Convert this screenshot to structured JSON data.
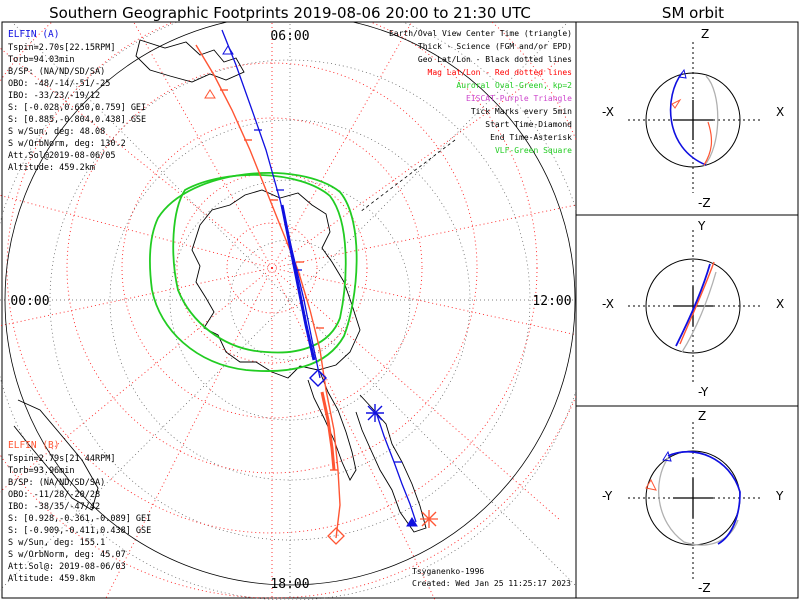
{
  "main_title": "Southern Geographic Footprints 2019-08-06 20:00 to 21:30 UTC",
  "sm_title": "SM orbit",
  "time_labels": {
    "top": "06:00",
    "left": "00:00",
    "right": "12:00",
    "bottom": "18:00"
  },
  "elfin_a": {
    "title": "ELFIN (A)",
    "lines": [
      "Tspin=2.70s[22.15RPM]",
      "Torb=94.03min",
      "B/SP: (NA/ND/SD/SA)",
      "OBO: -48/-14/-51/-25",
      "IBO: -33/23/-19/12",
      "S: [-0.028,0.650,0.759] GEI",
      "S: [0.885,-0.804,0.438] GSE",
      "S w/Sun, deg: 48.08",
      "S w/OrbNorm, deg: 130.2",
      "Att.Sol@2019-08-06/05",
      "Altitude: 459.2km"
    ]
  },
  "elfin_b": {
    "title": "ELFIN (B)",
    "lines": [
      "Tspin=2.79s[21.44RPM]",
      "Torb=93.96min",
      "B/SP: (NA/ND/SD/SA)",
      "OBO: -11/28/-20/28",
      "IBO: -38/35/-47/42",
      "S: [0.928,-0.361,-0.089] GEI",
      "S: [-0.909,-0.411,0.438] GSE",
      "S w/Sun, deg: 155.1",
      "S w/OrbNorm, deg: 45.07",
      "Att.Sol@: 2019-08-06/03",
      "Altitude: 459.8km"
    ]
  },
  "legend_lines": [
    {
      "text": "Earth/Oval View Center Time (triangle)",
      "color": "#000000"
    },
    {
      "text": "Thick - Science (FGM and/or EPD)",
      "color": "#000000"
    },
    {
      "text": "Geo Lat/Lon - Black dotted lines",
      "color": "#000000"
    },
    {
      "text": "Mag Lat/Lon - Red dotted lines",
      "color": "#ff0000"
    },
    {
      "text": "Auroral Oval-Green, kp=2",
      "color": "#22cc22"
    },
    {
      "text": "EISCAT-Purple Triangle",
      "color": "#cc44cc"
    },
    {
      "text": "Tick Marks every 5min",
      "color": "#000000"
    },
    {
      "text": "Start Time-Diamond",
      "color": "#000000"
    },
    {
      "text": "End Time-Asterisk",
      "color": "#000000"
    },
    {
      "text": "VLF-Green Square",
      "color": "#22cc22"
    }
  ],
  "credit_author": "Tsyganenko-1996",
  "credit_created": "Created: Wed Jan 25 11:25:17 2023",
  "sm_panels": [
    {
      "top": "Z",
      "bottom": "-Z",
      "left": "-X",
      "right": "X"
    },
    {
      "top": "Y",
      "bottom": "-Y",
      "left": "-X",
      "right": "X"
    },
    {
      "top": "Z",
      "bottom": "-Z",
      "left": "-Y",
      "right": "Y"
    }
  ],
  "colors": {
    "elfin_a": "#1010e0",
    "elfin_b": "#ff5533",
    "oval": "#22cc22",
    "mag_grid": "#ff2020",
    "grey_track": "#b0b0b0"
  }
}
